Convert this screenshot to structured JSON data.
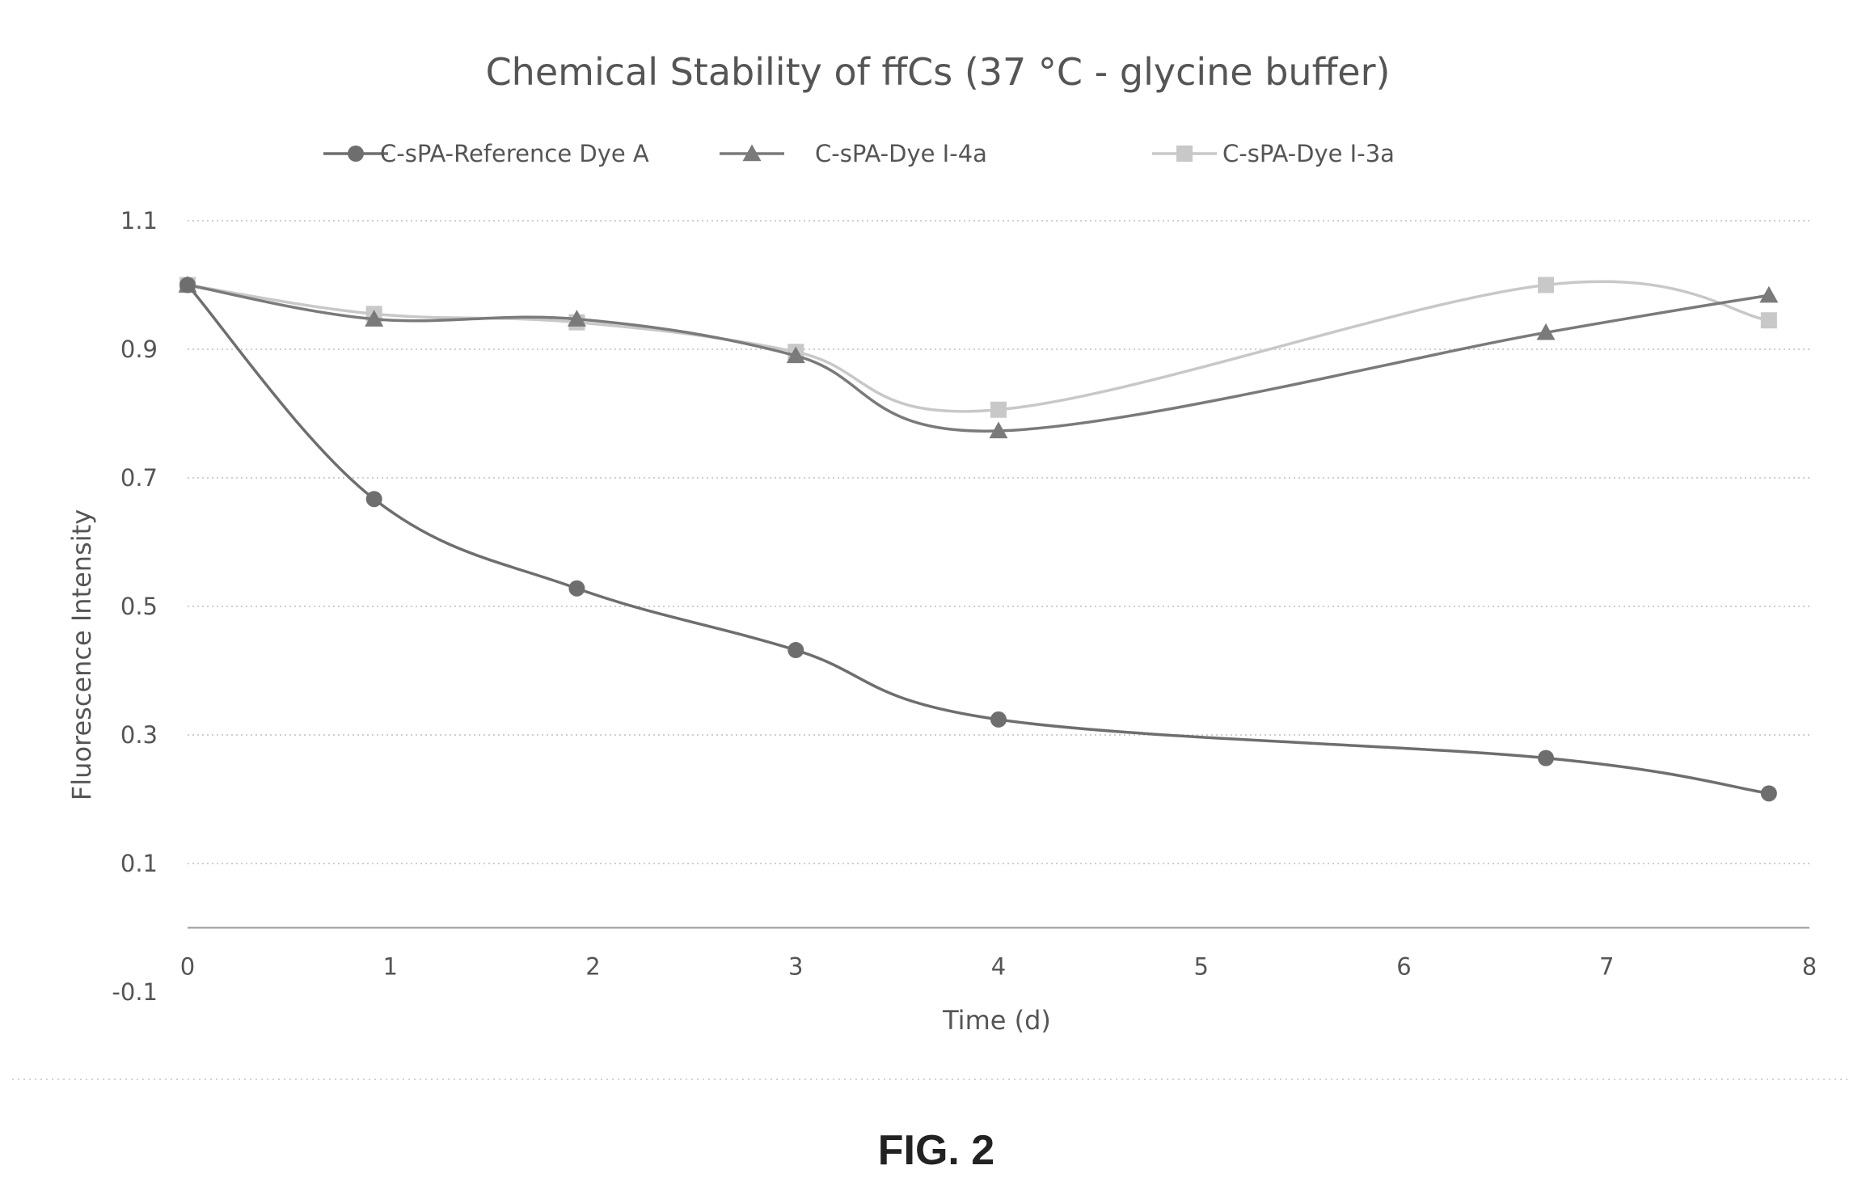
{
  "figure_label": "FIG. 2",
  "chart_data": {
    "type": "line",
    "title": "Chemical Stability of ffCs (37 °C - glycine buffer)",
    "xlabel": "Time (d)",
    "ylabel": "Fluorescence Intensity",
    "xlim": [
      0,
      8
    ],
    "ylim": [
      -0.1,
      1.1
    ],
    "xticks": [
      "0",
      "1",
      "2",
      "3",
      "4",
      "5",
      "6",
      "7",
      "8"
    ],
    "yticks": [
      "-0.1",
      "0.1",
      "0.3",
      "0.5",
      "0.7",
      "0.9",
      "1.1"
    ],
    "grid": true,
    "legend_position": "top",
    "smoothed": true,
    "series": [
      {
        "name": "C-sPA-Reference Dye A",
        "marker": "circle",
        "color": "#6e6e6e",
        "x": [
          0,
          0.92,
          1.92,
          3.0,
          4.0,
          6.7,
          7.8
        ],
        "y": [
          1.0,
          0.667,
          0.528,
          0.432,
          0.324,
          0.264,
          0.209
        ]
      },
      {
        "name": "C-sPA-Dye I-4a",
        "marker": "triangle",
        "color": "#7a7a7a",
        "x": [
          0,
          0.92,
          1.92,
          3.0,
          4.0,
          6.7,
          7.8
        ],
        "y": [
          1.0,
          0.947,
          0.947,
          0.89,
          0.773,
          0.926,
          0.984
        ]
      },
      {
        "name": "C-sPA-Dye  I-3a",
        "marker": "square",
        "color": "#c8c8c8",
        "x": [
          0,
          0.92,
          1.92,
          3.0,
          4.0,
          6.7,
          7.8
        ],
        "y": [
          1.0,
          0.955,
          0.942,
          0.896,
          0.806,
          1.0,
          0.945
        ]
      }
    ]
  }
}
